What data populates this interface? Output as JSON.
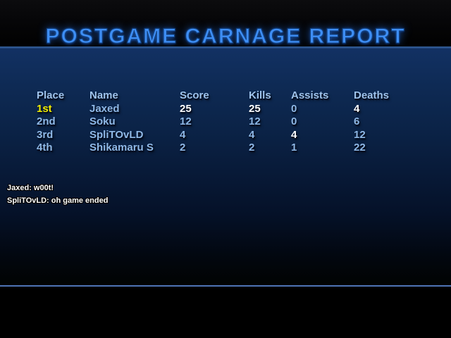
{
  "title": "POSTGAME CARNAGE REPORT",
  "scoreboard": {
    "columns": [
      "Place",
      "Name",
      "Score",
      "Kills",
      "Assists",
      "Deaths"
    ],
    "rows": [
      [
        {
          "t": "1st",
          "s": "first"
        },
        {
          "t": "Jaxed",
          "s": "n"
        },
        {
          "t": "25",
          "s": "best"
        },
        {
          "t": "25",
          "s": "best"
        },
        {
          "t": "0",
          "s": "n"
        },
        {
          "t": "4",
          "s": "best"
        }
      ],
      [
        {
          "t": "2nd",
          "s": "n"
        },
        {
          "t": "Soku",
          "s": "n"
        },
        {
          "t": "12",
          "s": "n"
        },
        {
          "t": "12",
          "s": "n"
        },
        {
          "t": "0",
          "s": "n"
        },
        {
          "t": "6",
          "s": "n"
        }
      ],
      [
        {
          "t": "3rd",
          "s": "n"
        },
        {
          "t": "SpliTOvLD",
          "s": "n"
        },
        {
          "t": "4",
          "s": "n"
        },
        {
          "t": "4",
          "s": "n"
        },
        {
          "t": "4",
          "s": "best"
        },
        {
          "t": "12",
          "s": "n"
        }
      ],
      [
        {
          "t": "4th",
          "s": "n"
        },
        {
          "t": "Shikamaru S",
          "s": "n"
        },
        {
          "t": "2",
          "s": "n"
        },
        {
          "t": "2",
          "s": "n"
        },
        {
          "t": "1",
          "s": "n"
        },
        {
          "t": "22",
          "s": "n"
        }
      ]
    ]
  },
  "chat": [
    "Jaxed: w00t!",
    "SpliTOvLD: oh game ended"
  ],
  "colors": {
    "title_blue": "#3E8EF5",
    "row_text_blue": "#8FB8E6",
    "best_value_white": "#FFFFFF",
    "first_place_yellow": "#F2EE00",
    "panel_navy_top": "#123163",
    "divider_blue": "#4F74B5"
  }
}
